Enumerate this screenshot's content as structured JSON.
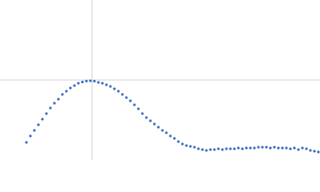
{
  "chart_data": {
    "type": "scatter",
    "color": "#3a6bbf",
    "xlim": [
      0,
      400
    ],
    "ylim": [
      0,
      200
    ],
    "reference_lines": {
      "x": 115,
      "y": 100,
      "color": "#d0d0d0"
    },
    "x": [
      33,
      38,
      43,
      48,
      53,
      58,
      63,
      68,
      73,
      78,
      83,
      88,
      93,
      98,
      103,
      108,
      113,
      118,
      123,
      128,
      133,
      138,
      143,
      148,
      153,
      158,
      163,
      168,
      173,
      178,
      183,
      188,
      193,
      198,
      203,
      208,
      213,
      218,
      223,
      228,
      233,
      238,
      243,
      248,
      253,
      258,
      263,
      268,
      273,
      278,
      283,
      288,
      293,
      298,
      303,
      308,
      313,
      318,
      323,
      328,
      333,
      338,
      343,
      348,
      353,
      358,
      363,
      368,
      373,
      378,
      383,
      388,
      393,
      398
    ],
    "values": [
      22,
      30,
      37,
      44,
      51,
      58,
      65,
      71,
      76,
      82,
      86,
      90,
      93,
      96,
      97.5,
      98.6,
      99,
      98.5,
      97,
      96,
      94,
      92,
      89,
      86,
      82,
      78,
      74,
      69,
      64,
      58,
      53,
      49,
      45,
      41,
      37,
      34,
      30,
      27,
      23,
      20,
      18,
      17,
      16,
      14,
      13,
      12,
      13,
      13,
      14,
      13,
      14,
      14,
      14,
      15,
      14,
      15,
      15,
      15,
      16,
      16,
      16,
      15,
      16,
      15,
      15,
      15,
      14,
      15,
      13,
      15,
      14,
      12,
      11,
      10
    ]
  }
}
